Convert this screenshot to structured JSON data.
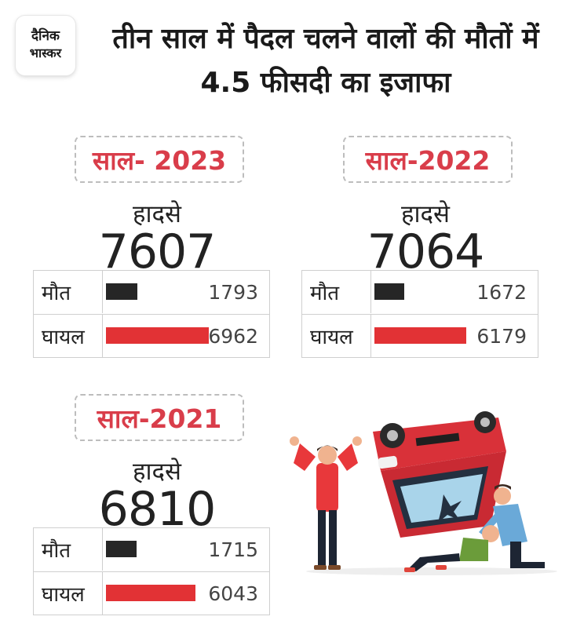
{
  "logo": {
    "line1": "दैनिक",
    "line2": "भास्कर"
  },
  "title": "तीन साल में पैदल चलने वालों की मौतों में 4.5 फीसदी का इजाफा",
  "labels": {
    "accidents": "हादसे",
    "deaths": "मौत",
    "injured": "घायल"
  },
  "years": [
    {
      "year_label": "साल- 2023",
      "accidents": "7607",
      "deaths": 1793,
      "injured": 6962
    },
    {
      "year_label": "साल-2022",
      "accidents": "7064",
      "deaths": 1672,
      "injured": 6179
    },
    {
      "year_label": "साल-2021",
      "accidents": "6810",
      "deaths": 1715,
      "injured": 6043
    }
  ],
  "colors": {
    "accent": "#d93d4a",
    "death_bar": "#262626",
    "injured_bar": "#e23235"
  },
  "illustration": "accident-scene"
}
